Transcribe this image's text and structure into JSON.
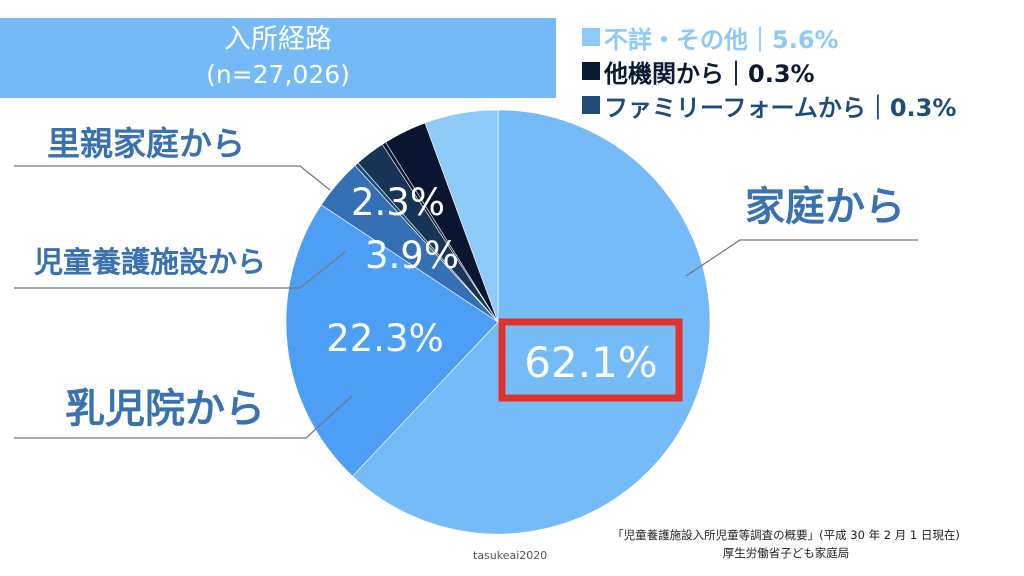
{
  "title": {
    "line1": "入所経路",
    "line2": "(n=27,026)"
  },
  "legend": [
    {
      "label": "不詳・その他｜5.6%",
      "color": "#8ecaf8",
      "text_color": "#8ecaf8",
      "swatch": "#8ecaf8"
    },
    {
      "label": "他機関から｜0.3%",
      "color": "#0d1a33",
      "text_color": "#0d1a33",
      "swatch": "#0d1a33"
    },
    {
      "label": "ファミリーフォームから｜0.3%",
      "color": "#1f4d7a",
      "text_color": "#1f4d7a",
      "swatch": "#1f4d7a"
    }
  ],
  "chart_data": {
    "type": "pie",
    "start_angle_deg": 0,
    "direction": "clockwise",
    "slices": [
      {
        "name": "家庭から",
        "value": 62.1,
        "color": "#74bbf7",
        "label": "62.1%"
      },
      {
        "name": "乳児院から",
        "value": 22.3,
        "color": "#4d9ff5",
        "label": "22.3%"
      },
      {
        "name": "児童養護施設から",
        "value": 3.9,
        "color": "#3570b5",
        "label": "3.9%"
      },
      {
        "name": "ファミリーフォームから",
        "value": 0.3,
        "color": "#1f4d7a",
        "label": ""
      },
      {
        "name": "里親家庭から",
        "value": 2.3,
        "color": "#183456",
        "label": "2.3%"
      },
      {
        "name": "他機関から",
        "value": 0.3,
        "color": "#0d1a33",
        "label": ""
      },
      {
        "name": "",
        "value": 3.3,
        "color": "#0a1530",
        "label": ""
      },
      {
        "name": "不詳・その他",
        "value": 5.6,
        "color": "#8ecaf8",
        "label": ""
      }
    ],
    "callouts": [
      {
        "text": "家庭から",
        "color": "#3a72b0"
      },
      {
        "text": "里親家庭から",
        "color": "#3a72b0"
      },
      {
        "text": "児童養護施設から",
        "color": "#3a72b0"
      },
      {
        "text": "乳児院から",
        "color": "#3a72b0"
      }
    ],
    "highlight_color": "#e0342a"
  },
  "source": {
    "line1": "「児童養護施設入所児童等調査の概要」(平成 30 年 2 月 1 日現在)",
    "line2": "厚生労働省子ども家庭局"
  },
  "watermark": "tasukeai2020"
}
